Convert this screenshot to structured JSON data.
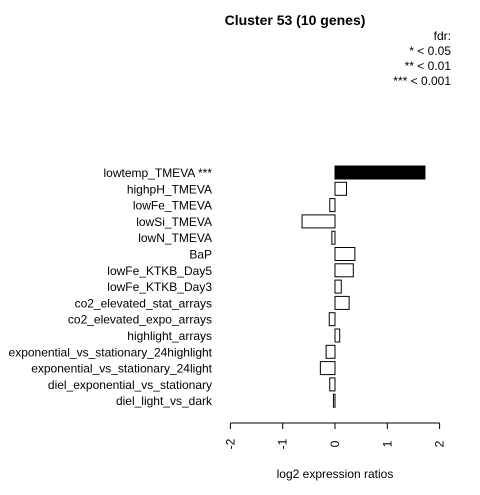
{
  "chart_data": {
    "type": "bar",
    "orientation": "horizontal",
    "title": "Cluster 53 (10 genes)",
    "xlabel": "log2 expression ratios",
    "ylabel": "",
    "xlim": [
      -2,
      2
    ],
    "xticks": [
      "-2",
      "-1",
      "0",
      "1",
      "2"
    ],
    "xtick_values": [
      -2,
      -1,
      0,
      1,
      2
    ],
    "categories": [
      "lowtemp_TMEVA ***",
      "highpH_TMEVA",
      "lowFe_TMEVA",
      "lowSi_TMEVA",
      "lowN_TMEVA",
      "BaP",
      "lowFe_KTKB_Day5",
      "lowFe_KTKB_Day3",
      "co2_elevated_stat_arrays",
      "co2_elevated_expo_arrays",
      "highlight_arrays",
      "exponential_vs_stationary_24highlight",
      "exponential_vs_stationary_24light",
      "diel_exponential_vs_stationary",
      "diel_light_vs_dark"
    ],
    "values": [
      1.72,
      0.22,
      -0.1,
      -0.63,
      -0.06,
      0.38,
      0.35,
      0.12,
      0.27,
      -0.11,
      0.09,
      -0.17,
      -0.28,
      -0.1,
      -0.03
    ],
    "bar_fill": [
      "#000000",
      "#ffffff",
      "#ffffff",
      "#ffffff",
      "#ffffff",
      "#ffffff",
      "#ffffff",
      "#ffffff",
      "#ffffff",
      "#ffffff",
      "#ffffff",
      "#ffffff",
      "#ffffff",
      "#ffffff",
      "#ffffff"
    ],
    "bar_stroke": "#000000",
    "grid": false,
    "legend": {
      "position": "top-right",
      "title": "fdr:",
      "entries": [
        "* < 0.05",
        "** < 0.01",
        "*** < 0.001"
      ]
    }
  }
}
